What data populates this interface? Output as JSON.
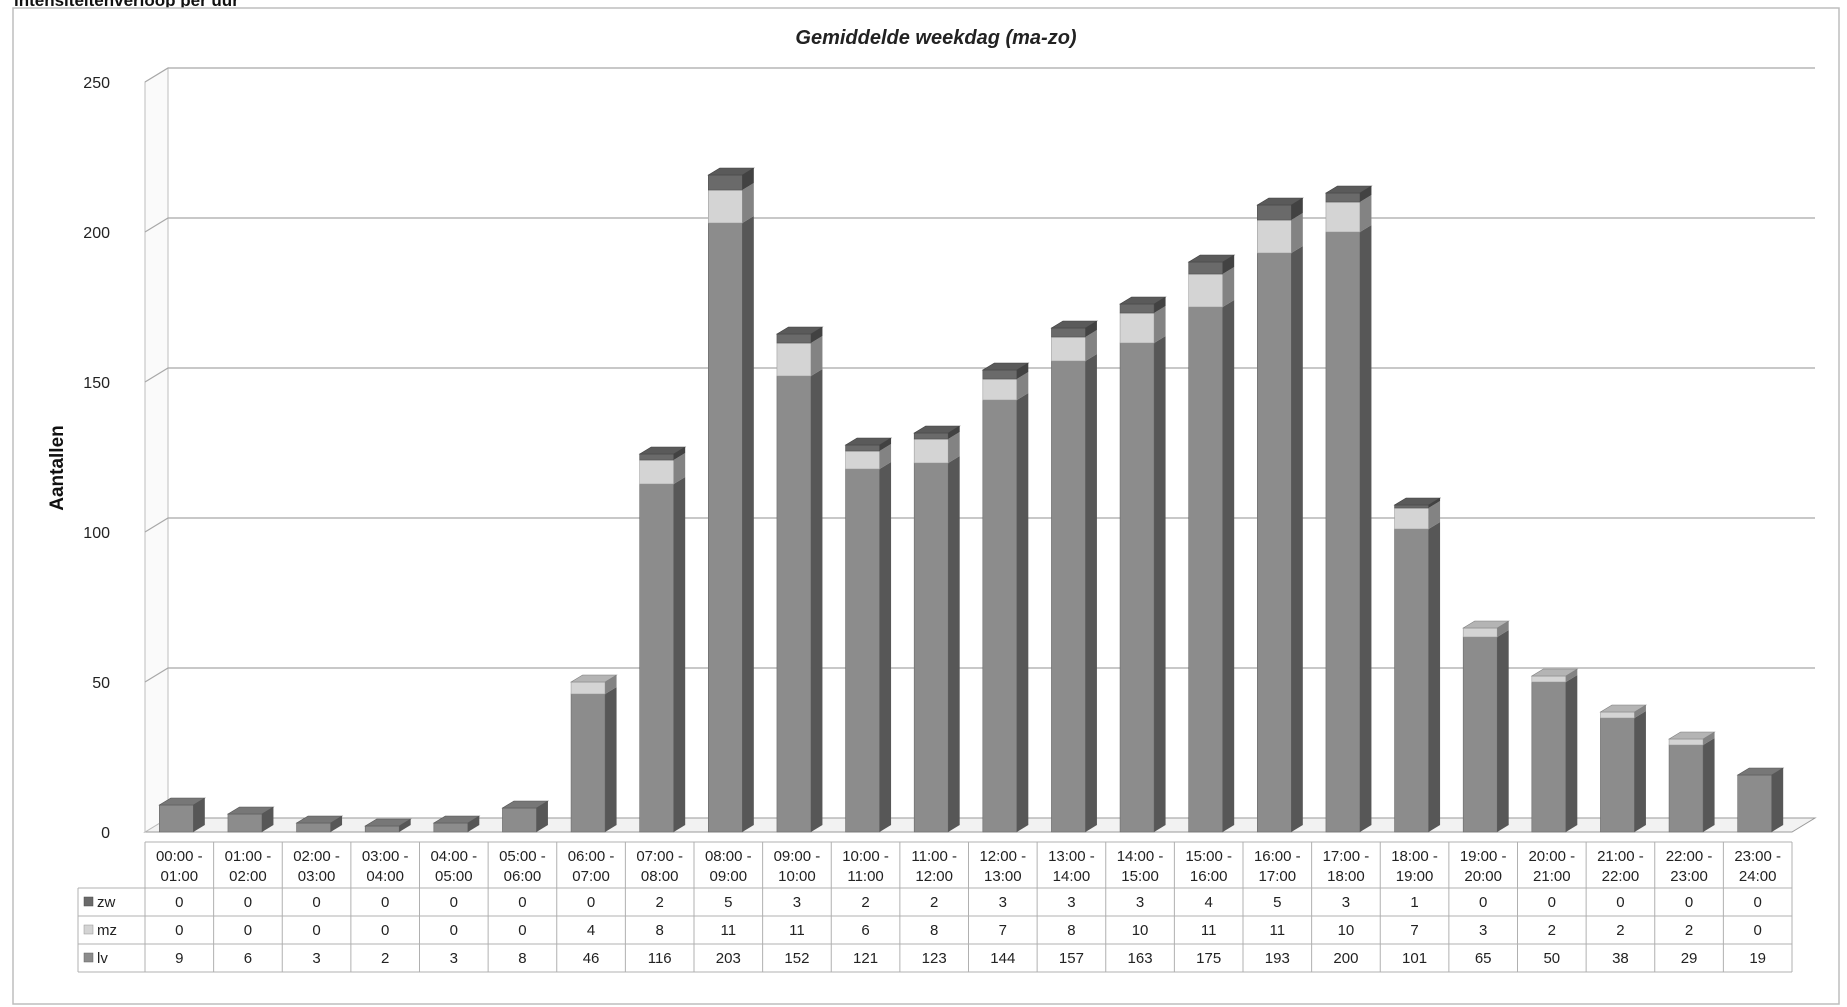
{
  "page": {
    "heading": "intensiteitenverloop per uur"
  },
  "chart_data": {
    "type": "bar",
    "stacked": true,
    "view": "3d-column",
    "title": "Gemiddelde weekdag (ma-zo)",
    "ylabel": "Aantallen",
    "xlabel": "",
    "ylim": [
      0,
      250
    ],
    "yticks": [
      0,
      50,
      100,
      150,
      200,
      250
    ],
    "grid": true,
    "legend": "data-table-left",
    "categories": [
      [
        "00:00 -",
        "01:00"
      ],
      [
        "01:00 -",
        "02:00"
      ],
      [
        "02:00 -",
        "03:00"
      ],
      [
        "03:00 -",
        "04:00"
      ],
      [
        "04:00 -",
        "05:00"
      ],
      [
        "05:00 -",
        "06:00"
      ],
      [
        "06:00 -",
        "07:00"
      ],
      [
        "07:00 -",
        "08:00"
      ],
      [
        "08:00 -",
        "09:00"
      ],
      [
        "09:00 -",
        "10:00"
      ],
      [
        "10:00 -",
        "11:00"
      ],
      [
        "11:00 -",
        "12:00"
      ],
      [
        "12:00 -",
        "13:00"
      ],
      [
        "13:00 -",
        "14:00"
      ],
      [
        "14:00 -",
        "15:00"
      ],
      [
        "15:00 -",
        "16:00"
      ],
      [
        "16:00 -",
        "17:00"
      ],
      [
        "17:00 -",
        "18:00"
      ],
      [
        "18:00 -",
        "19:00"
      ],
      [
        "19:00 -",
        "20:00"
      ],
      [
        "20:00 -",
        "21:00"
      ],
      [
        "21:00 -",
        "22:00"
      ],
      [
        "22:00 -",
        "23:00"
      ],
      [
        "23:00 -",
        "24:00"
      ]
    ],
    "series": [
      {
        "name": "lv",
        "color": "#8c8c8c",
        "values": [
          9,
          6,
          3,
          2,
          3,
          8,
          46,
          116,
          203,
          152,
          121,
          123,
          144,
          157,
          163,
          175,
          193,
          200,
          101,
          65,
          50,
          38,
          29,
          19
        ]
      },
      {
        "name": "mz",
        "color": "#d4d4d4",
        "values": [
          0,
          0,
          0,
          0,
          0,
          0,
          4,
          8,
          11,
          11,
          6,
          8,
          7,
          8,
          10,
          11,
          11,
          10,
          7,
          3,
          2,
          2,
          2,
          0
        ]
      },
      {
        "name": "zw",
        "color": "#6a6a6a",
        "values": [
          0,
          0,
          0,
          0,
          0,
          0,
          0,
          2,
          5,
          3,
          2,
          2,
          3,
          3,
          3,
          4,
          5,
          3,
          1,
          0,
          0,
          0,
          0,
          0
        ]
      }
    ],
    "table_order": [
      "zw",
      "mz",
      "lv"
    ]
  }
}
